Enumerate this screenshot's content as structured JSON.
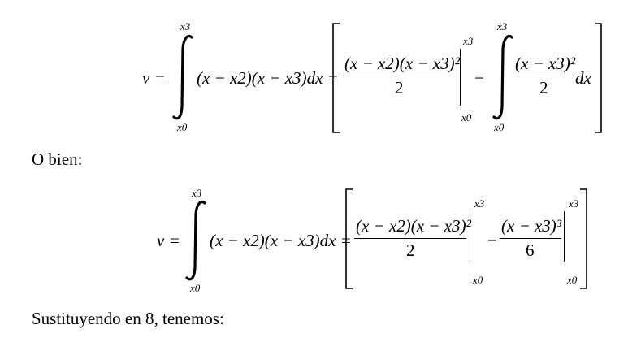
{
  "document": {
    "eq1": {
      "lhs": "v =",
      "upper": "x3",
      "lower": "x0",
      "integrand": "(x − x2)(x − x3)dx =",
      "frac1_num": "(x − x2)(x − x3)²",
      "frac1_den": "2",
      "eval_upper": "x3",
      "eval_lower": "x0",
      "minus": "−",
      "int2_upper": "x3",
      "int2_lower": "x0",
      "frac2_num": "(x − x3)²",
      "frac2_den": "2",
      "frac2_suffix": "dx"
    },
    "text1": "O bien:",
    "eq2": {
      "lhs": "v =",
      "upper": "x3",
      "lower": "x0",
      "integrand": "(x − x2)(x − x3)dx =",
      "frac1_num": "(x − x2)(x − x3)²",
      "frac1_den": "2",
      "eval1_upper": "x3",
      "eval1_lower": "x0",
      "minus": "−",
      "frac2_num": "(x − x3)³",
      "frac2_den": "6",
      "eval2_upper": "x3",
      "eval2_lower": "x0"
    },
    "text2": "Sustituyendo en 8, tenemos:"
  }
}
